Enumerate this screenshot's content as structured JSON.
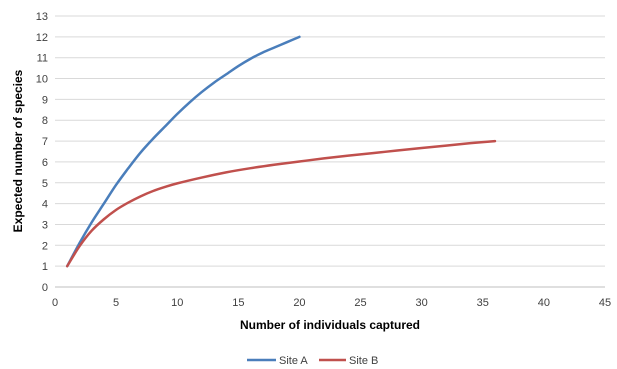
{
  "chart_data": {
    "type": "line",
    "title": "",
    "xlabel": "Number of individuals captured",
    "ylabel": "Expected number of species",
    "xlim": [
      0,
      45
    ],
    "ylim": [
      0,
      13
    ],
    "x_ticks": [
      0,
      5,
      10,
      15,
      20,
      25,
      30,
      35,
      40,
      45
    ],
    "y_ticks": [
      0,
      1,
      2,
      3,
      4,
      5,
      6,
      7,
      8,
      9,
      10,
      11,
      12,
      13
    ],
    "grid": "horizontal",
    "legend_position": "bottom",
    "series": [
      {
        "name": "Site A",
        "color": "#4a7ebb",
        "points": [
          [
            1,
            1.0
          ],
          [
            2,
            2.1
          ],
          [
            3,
            3.1
          ],
          [
            4,
            4.0
          ],
          [
            5,
            4.9
          ],
          [
            6,
            5.7
          ],
          [
            7,
            6.45
          ],
          [
            8,
            7.1
          ],
          [
            9,
            7.7
          ],
          [
            10,
            8.3
          ],
          [
            11,
            8.85
          ],
          [
            12,
            9.35
          ],
          [
            13,
            9.8
          ],
          [
            14,
            10.2
          ],
          [
            15,
            10.6
          ],
          [
            16,
            10.95
          ],
          [
            17,
            11.25
          ],
          [
            18,
            11.5
          ],
          [
            19,
            11.75
          ],
          [
            20,
            12.0
          ]
        ]
      },
      {
        "name": "Site B",
        "color": "#c0504d",
        "points": [
          [
            1,
            1.0
          ],
          [
            2,
            1.95
          ],
          [
            3,
            2.7
          ],
          [
            4,
            3.25
          ],
          [
            5,
            3.7
          ],
          [
            6,
            4.05
          ],
          [
            7,
            4.35
          ],
          [
            8,
            4.6
          ],
          [
            9,
            4.8
          ],
          [
            10,
            4.97
          ],
          [
            12,
            5.25
          ],
          [
            14,
            5.5
          ],
          [
            16,
            5.7
          ],
          [
            18,
            5.87
          ],
          [
            20,
            6.02
          ],
          [
            22,
            6.17
          ],
          [
            24,
            6.3
          ],
          [
            26,
            6.42
          ],
          [
            28,
            6.55
          ],
          [
            30,
            6.67
          ],
          [
            32,
            6.78
          ],
          [
            34,
            6.9
          ],
          [
            36,
            7.0
          ]
        ]
      }
    ]
  }
}
